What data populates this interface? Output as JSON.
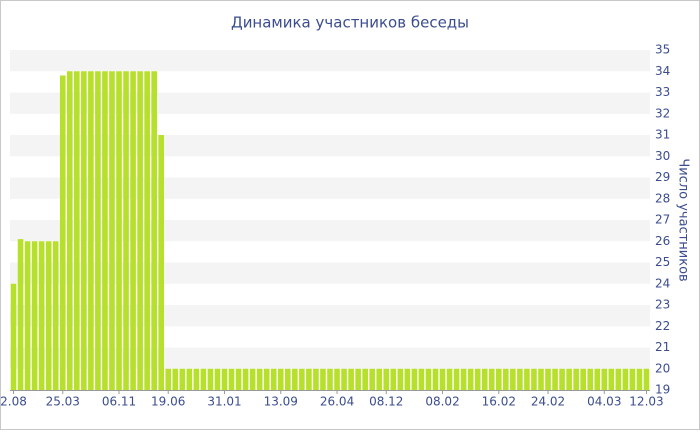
{
  "chart_data": {
    "type": "bar",
    "title": "Динамика участников беседы",
    "y_label": "Число участников",
    "categories": [
      "2.08",
      null,
      null,
      null,
      null,
      null,
      null,
      "25.03",
      null,
      null,
      null,
      null,
      null,
      null,
      null,
      "06.11",
      null,
      null,
      null,
      null,
      null,
      null,
      "19.06",
      null,
      null,
      null,
      null,
      null,
      null,
      null,
      "31.01",
      null,
      null,
      null,
      null,
      null,
      null,
      null,
      "13.09",
      null,
      null,
      null,
      null,
      null,
      null,
      null,
      "26.04",
      null,
      null,
      null,
      null,
      null,
      null,
      "08.12",
      null,
      null,
      null,
      null,
      null,
      null,
      null,
      "08.02",
      null,
      null,
      null,
      null,
      null,
      null,
      null,
      "16.02",
      null,
      null,
      null,
      null,
      null,
      null,
      "24.02",
      null,
      null,
      null,
      null,
      null,
      null,
      null,
      "04.03",
      null,
      null,
      null,
      null,
      null,
      "12.03"
    ],
    "values": [
      24,
      26.1,
      26,
      26,
      26,
      26,
      26,
      33.8,
      34,
      34,
      34,
      34,
      34,
      34,
      34,
      34,
      34,
      34,
      34,
      34,
      34,
      31,
      20,
      20,
      20,
      20,
      20,
      20,
      20,
      20,
      20,
      20,
      20,
      20,
      20,
      20,
      20,
      20,
      20,
      20,
      20,
      20,
      20,
      20,
      20,
      20,
      20,
      20,
      20,
      20,
      20,
      20,
      20,
      20,
      20,
      20,
      20,
      20,
      20,
      20,
      20,
      20,
      20,
      20,
      20,
      20,
      20,
      20,
      20,
      20,
      20,
      20,
      20,
      20,
      20,
      20,
      20,
      20,
      20,
      20,
      20,
      20,
      20,
      20,
      20,
      20,
      20,
      20,
      20,
      20,
      20
    ],
    "color": "#b7e02c",
    "ylim": [
      19,
      35
    ],
    "yticks": [
      19,
      20,
      21,
      22,
      23,
      24,
      25,
      26,
      27,
      28,
      29,
      30,
      31,
      32,
      33,
      34,
      35
    ],
    "grid": "bands",
    "y_axis_side": "right"
  }
}
